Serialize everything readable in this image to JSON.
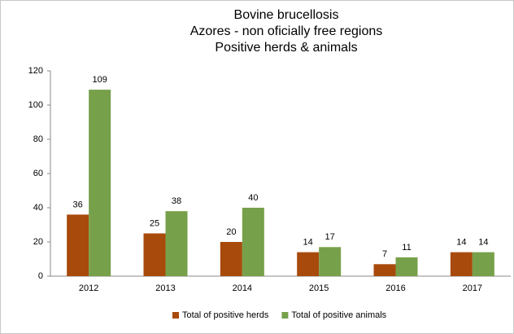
{
  "chart_data": {
    "type": "bar",
    "title": [
      "Bovine brucellosis",
      "Azores - non oficially free regions",
      "Positive herds & animals"
    ],
    "categories": [
      "2012",
      "2013",
      "2014",
      "2015",
      "2016",
      "2017"
    ],
    "series": [
      {
        "name": "Total of positive herds",
        "color": "#a84a0c",
        "values": [
          36,
          25,
          20,
          14,
          7,
          14
        ]
      },
      {
        "name": "Total of positive animals",
        "color": "#77a04a",
        "values": [
          109,
          38,
          40,
          17,
          11,
          14
        ]
      }
    ],
    "ylim": [
      0,
      120
    ],
    "yticks": [
      0,
      20,
      40,
      60,
      80,
      100,
      120
    ],
    "grid": false,
    "legend": "bottom"
  }
}
